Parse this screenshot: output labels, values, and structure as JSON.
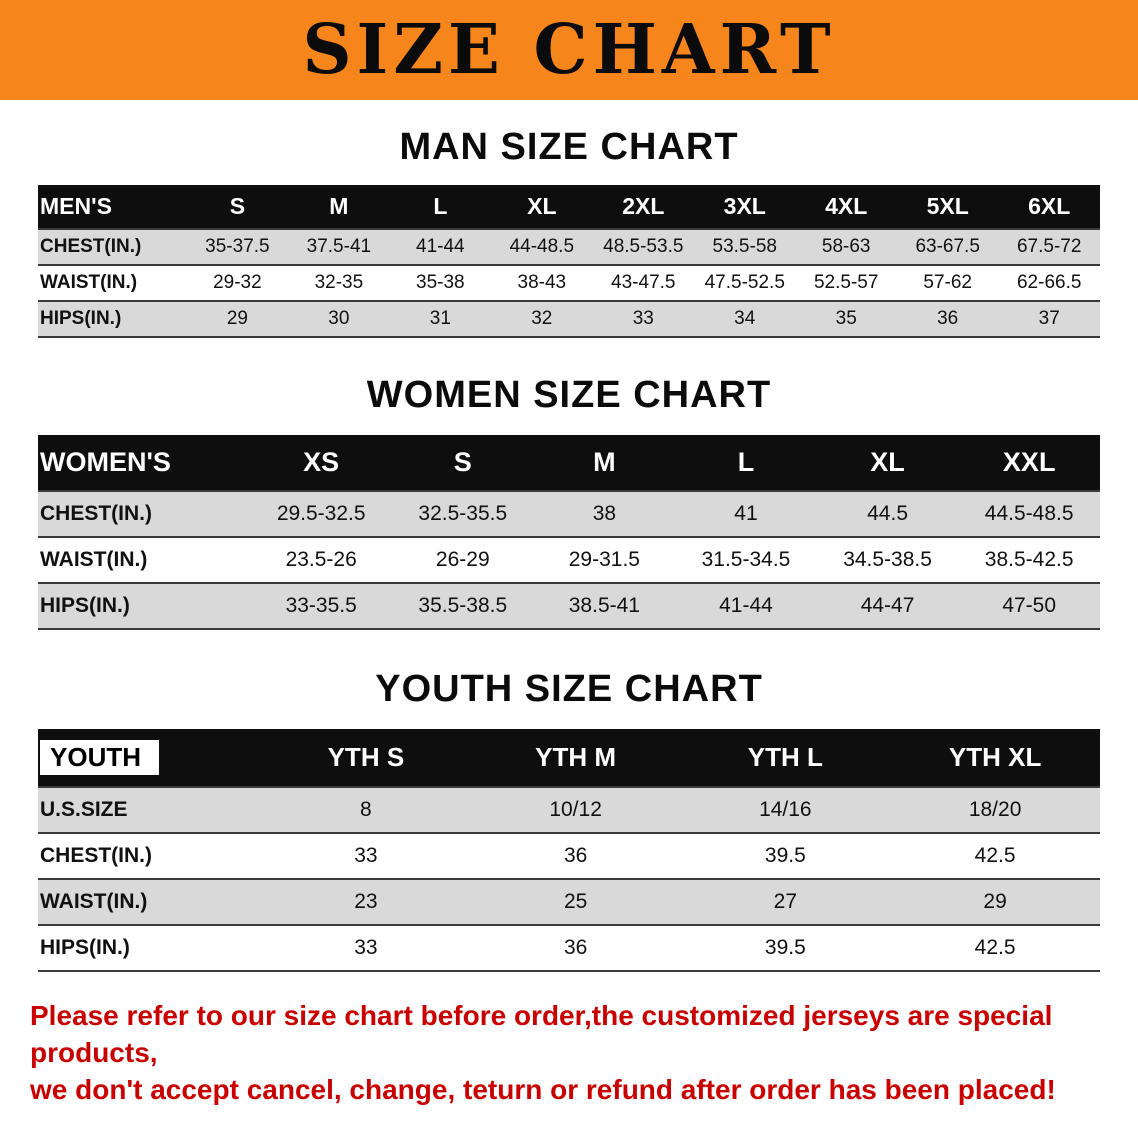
{
  "colors": {
    "banner_bg": "#f6861c",
    "table_header_bg": "#0e0e0e",
    "table_header_text": "#ffffff",
    "row_stripe": "#d9d9d9",
    "footer_text": "#c90000"
  },
  "banner": {
    "title": "SIZE CHART"
  },
  "tables": {
    "men": {
      "title": "MAN SIZE CHART",
      "header": [
        "MEN'S",
        "S",
        "M",
        "L",
        "XL",
        "2XL",
        "3XL",
        "4XL",
        "5XL",
        "6XL"
      ],
      "rows": [
        {
          "label": "CHEST(IN.)",
          "values": [
            "35-37.5",
            "37.5-41",
            "41-44",
            "44-48.5",
            "48.5-53.5",
            "53.5-58",
            "58-63",
            "63-67.5",
            "67.5-72"
          ]
        },
        {
          "label": "WAIST(IN.)",
          "values": [
            "29-32",
            "32-35",
            "35-38",
            "38-43",
            "43-47.5",
            "47.5-52.5",
            "52.5-57",
            "57-62",
            "62-66.5"
          ]
        },
        {
          "label": "HIPS(IN.)",
          "values": [
            "29",
            "30",
            "31",
            "32",
            "33",
            "34",
            "35",
            "36",
            "37"
          ]
        }
      ]
    },
    "women": {
      "title": "WOMEN SIZE CHART",
      "header": [
        "WOMEN'S",
        "XS",
        "S",
        "M",
        "L",
        "XL",
        "XXL"
      ],
      "rows": [
        {
          "label": "CHEST(IN.)",
          "values": [
            "29.5-32.5",
            "32.5-35.5",
            "38",
            "41",
            "44.5",
            "44.5-48.5"
          ]
        },
        {
          "label": "WAIST(IN.)",
          "values": [
            "23.5-26",
            "26-29",
            "29-31.5",
            "31.5-34.5",
            "34.5-38.5",
            "38.5-42.5"
          ]
        },
        {
          "label": "HIPS(IN.)",
          "values": [
            "33-35.5",
            "35.5-38.5",
            "38.5-41",
            "41-44",
            "44-47",
            "47-50"
          ]
        }
      ]
    },
    "youth": {
      "title": "YOUTH SIZE CHART",
      "header": [
        "YOUTH",
        "YTH S",
        "YTH M",
        "YTH L",
        "YTH XL"
      ],
      "rows": [
        {
          "label": "U.S.SIZE",
          "values": [
            "8",
            "10/12",
            "14/16",
            "18/20"
          ]
        },
        {
          "label": "CHEST(IN.)",
          "values": [
            "33",
            "36",
            "39.5",
            "42.5"
          ]
        },
        {
          "label": "WAIST(IN.)",
          "values": [
            "23",
            "25",
            "27",
            "29"
          ]
        },
        {
          "label": "HIPS(IN.)",
          "values": [
            "33",
            "36",
            "39.5",
            "42.5"
          ]
        }
      ]
    }
  },
  "footer": {
    "line1": "Please refer to our size chart before order,the customized jerseys are special products,",
    "line2": "we don't accept cancel, change, teturn or refund after order has been placed!"
  }
}
